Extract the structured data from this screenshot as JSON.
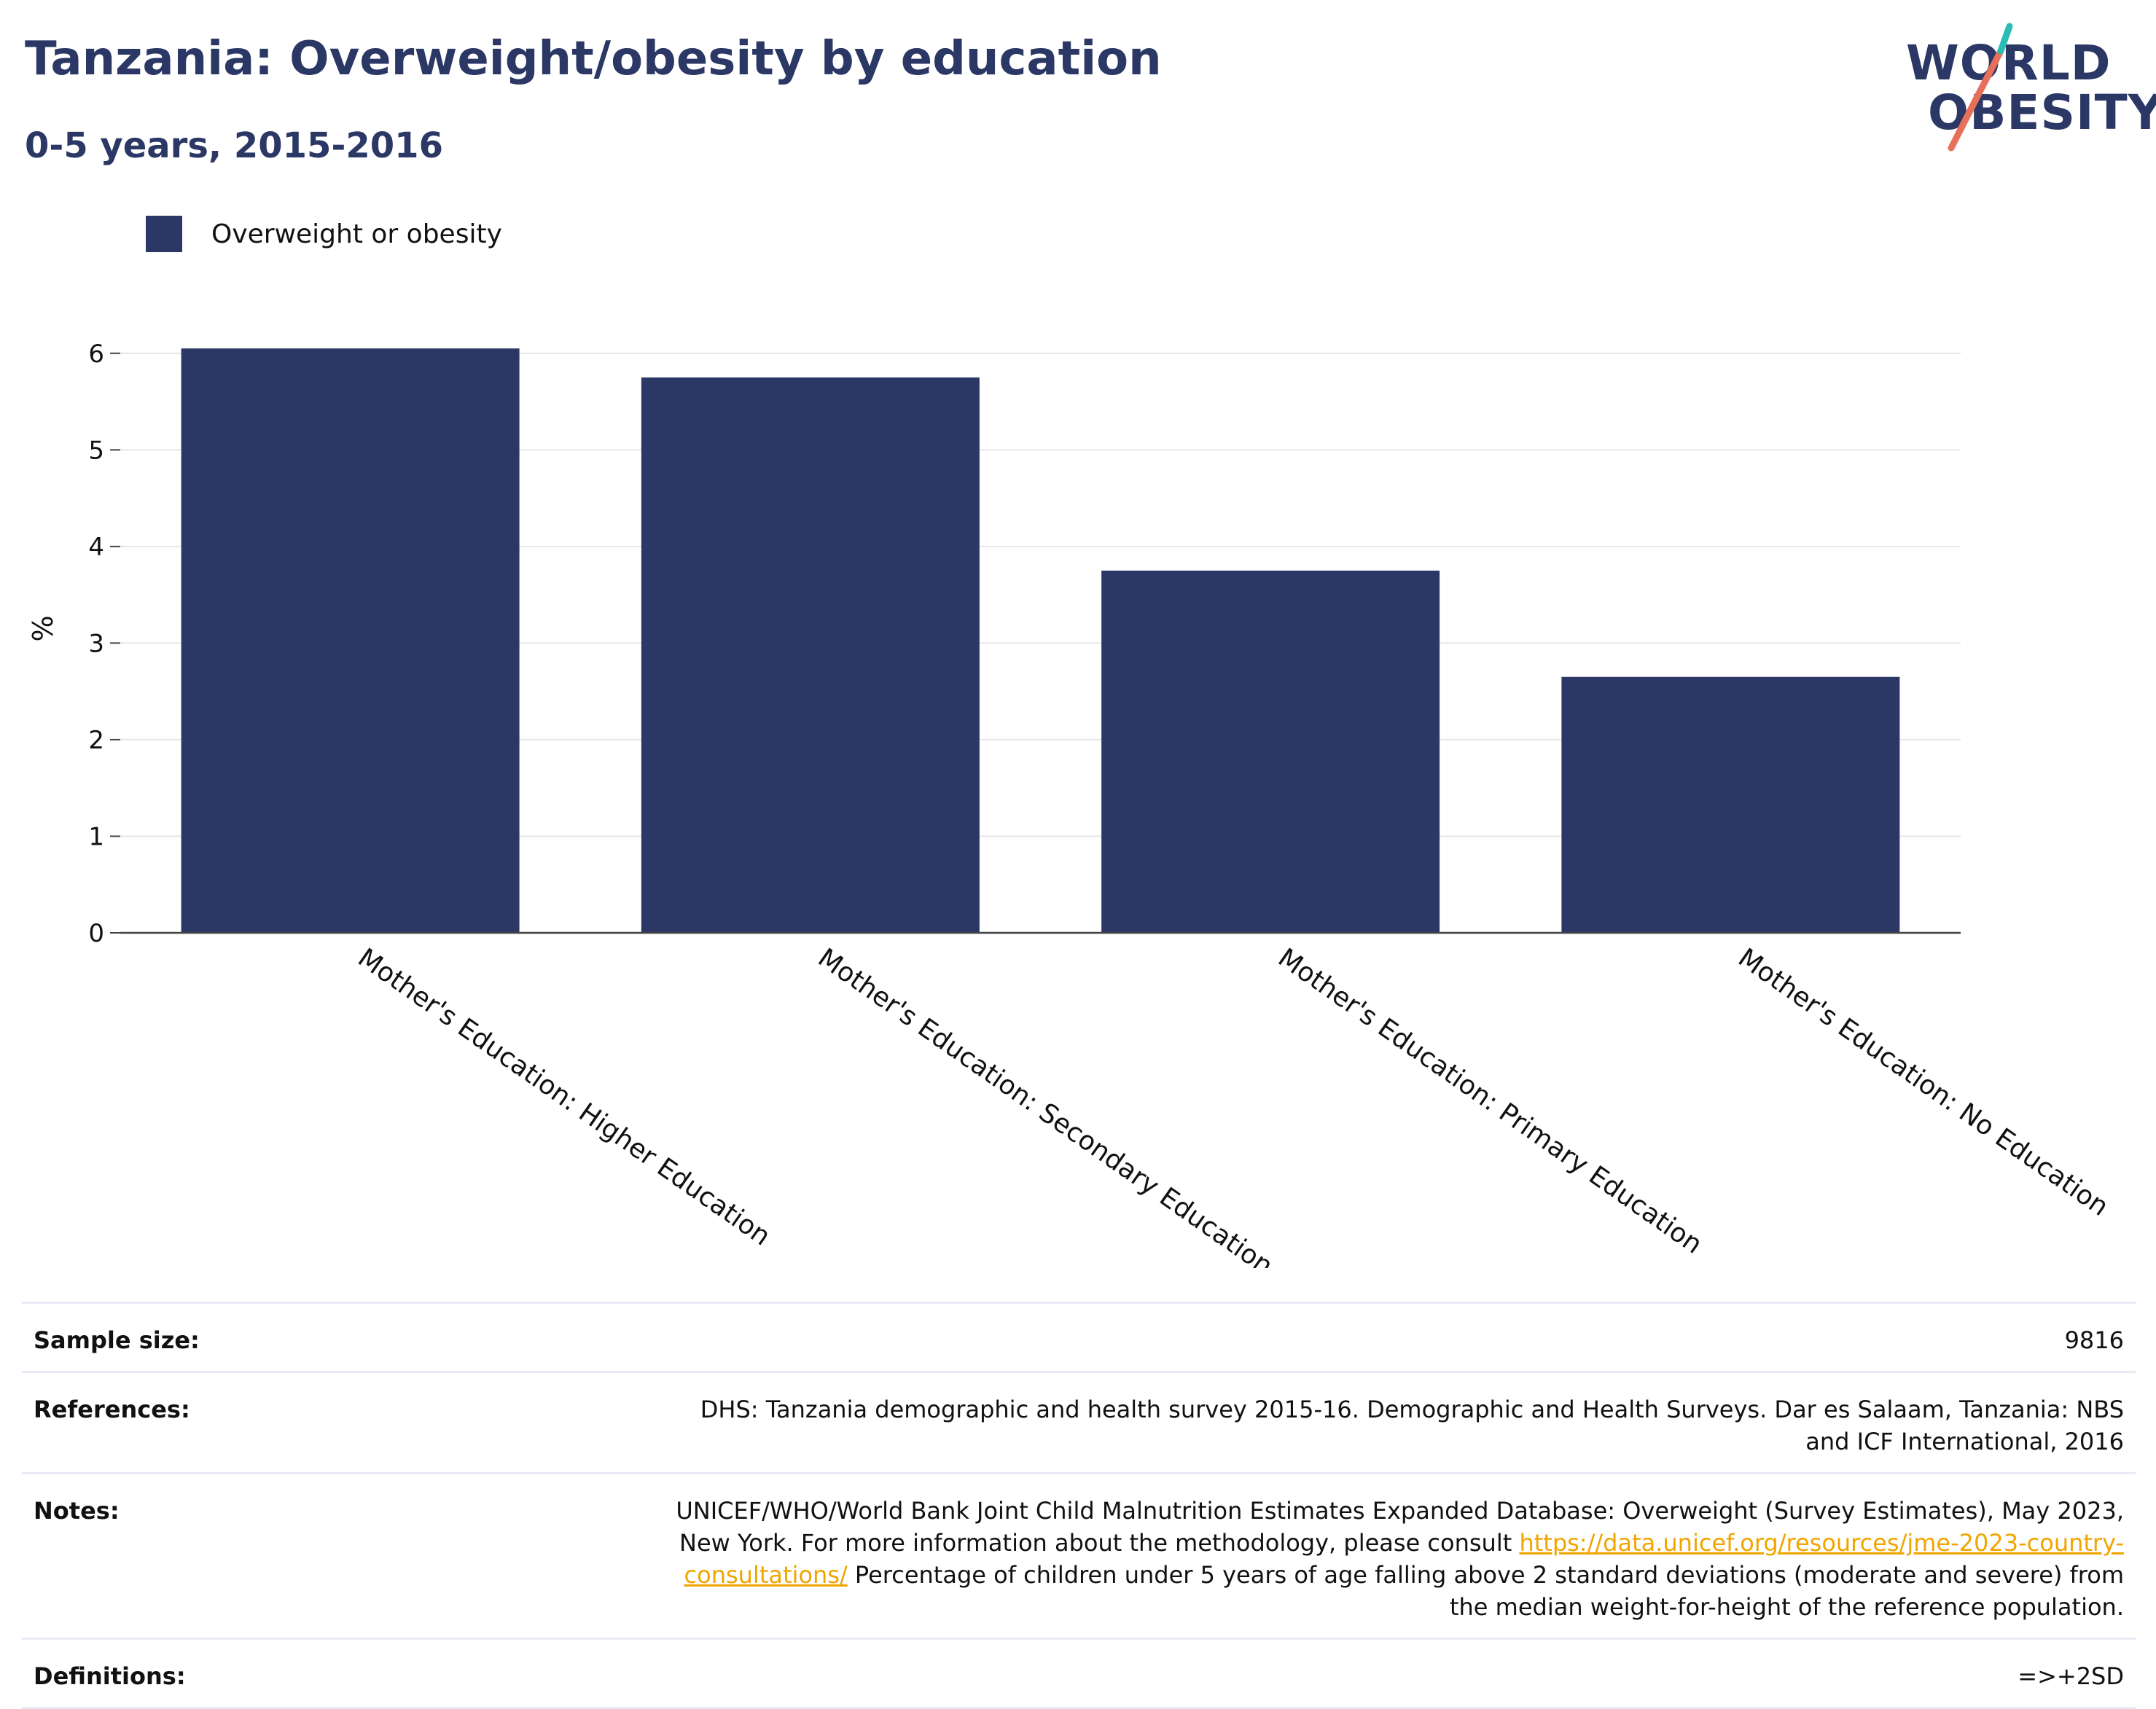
{
  "header": {
    "title": "Tanzania: Overweight/obesity by education",
    "subtitle": "0-5 years, 2015-2016"
  },
  "logo": {
    "line1": "WORLD",
    "line2": "OBESITY",
    "colors": {
      "text": "#2b3764",
      "accent_teal": "#2bbcb4",
      "accent_coral": "#e8705a"
    }
  },
  "legend": {
    "items": [
      {
        "label": "Overweight or obesity",
        "color": "#2b3764"
      }
    ]
  },
  "chart_data": {
    "type": "bar",
    "categories": [
      "Mother's Education: Higher Education",
      "Mother's Education: Secondary Education",
      "Mother's Education: Primary Education",
      "Mother's Education: No Education"
    ],
    "series": [
      {
        "name": "Overweight or obesity",
        "values": [
          6.05,
          5.75,
          3.75,
          2.65
        ],
        "color": "#2b3764"
      }
    ],
    "ylabel": "%",
    "ylim": [
      0,
      6.3
    ],
    "yticks": [
      0,
      1,
      2,
      3,
      4,
      5,
      6
    ],
    "grid": true,
    "legend_position": "top-left"
  },
  "info": {
    "sample_size_label": "Sample size:",
    "sample_size_value": "9816",
    "references_label": "References:",
    "references_value": "DHS: Tanzania demographic and health survey 2015-16. Demographic and Health Surveys. Dar es Salaam, Tanzania: NBS and ICF International, 2016",
    "notes_label": "Notes:",
    "notes_text_1": "UNICEF/WHO/World Bank Joint Child Malnutrition Estimates Expanded Database: Overweight (Survey Estimates), May 2023, New York. For more information about the methodology, please consult ",
    "notes_link": "https://data.unicef.org/resources/jme-2023-country-consultations/",
    "notes_text_2": " Percentage of children under 5 years of age falling above 2 standard deviations (moderate and severe) from the median weight-for-height of the reference population.",
    "definitions_label": "Definitions:",
    "definitions_value": "=>+2SD"
  }
}
